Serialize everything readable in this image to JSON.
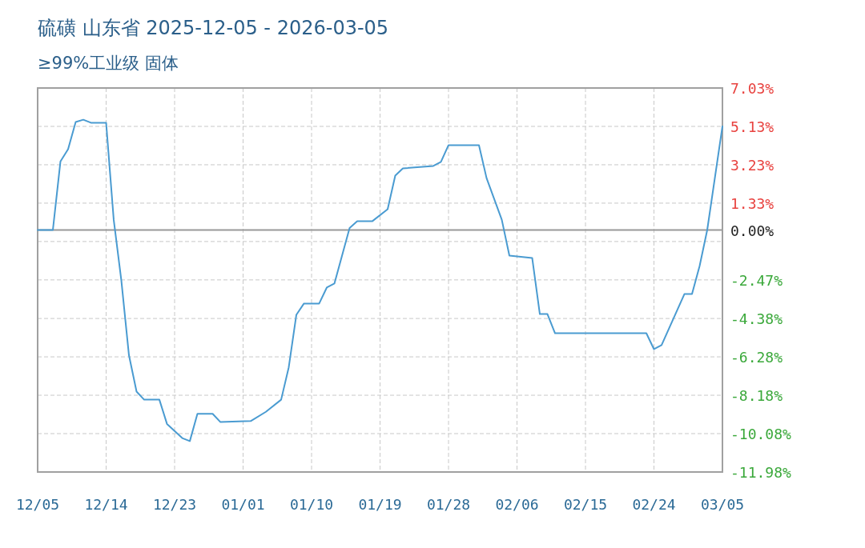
{
  "chart_data": {
    "type": "line",
    "title": "硫磺 山东省 2025-12-05 - 2026-03-05",
    "subtitle": "≥99%工业级 固体",
    "x": [
      "2025-12-05",
      "2025-12-07",
      "2025-12-08",
      "2025-12-09",
      "2025-12-10",
      "2025-12-11",
      "2025-12-12",
      "2025-12-14",
      "2025-12-15",
      "2025-12-16",
      "2025-12-17",
      "2025-12-18",
      "2025-12-19",
      "2025-12-21",
      "2025-12-22",
      "2025-12-24",
      "2025-12-25",
      "2025-12-26",
      "2025-12-28",
      "2025-12-29",
      "2026-01-02",
      "2026-01-04",
      "2026-01-06",
      "2026-01-07",
      "2026-01-08",
      "2026-01-09",
      "2026-01-11",
      "2026-01-12",
      "2026-01-13",
      "2026-01-15",
      "2026-01-16",
      "2026-01-18",
      "2026-01-20",
      "2026-01-21",
      "2026-01-22",
      "2026-01-26",
      "2026-01-27",
      "2026-01-28",
      "2026-02-01",
      "2026-02-02",
      "2026-02-04",
      "2026-02-05",
      "2026-02-08",
      "2026-02-09",
      "2026-02-10",
      "2026-02-11",
      "2026-02-23",
      "2026-02-24",
      "2026-02-25",
      "2026-02-28",
      "2026-03-01",
      "2026-03-02",
      "2026-03-03",
      "2026-03-05"
    ],
    "series": [
      {
        "color": "#4a9bd1",
        "values": [
          0,
          0,
          3.4,
          4.0,
          5.35,
          5.46,
          5.31,
          5.31,
          0.5,
          -2.5,
          -6.2,
          -8.0,
          -8.4,
          -8.4,
          -9.6,
          -10.3,
          -10.45,
          -9.1,
          -9.1,
          -9.5,
          -9.46,
          -9.0,
          -8.4,
          -6.8,
          -4.2,
          -3.64,
          -3.64,
          -2.85,
          -2.65,
          0.1,
          0.44,
          0.44,
          1.03,
          2.69,
          3.05,
          3.17,
          3.37,
          4.2,
          4.2,
          2.57,
          0.51,
          -1.27,
          -1.39,
          -4.16,
          -4.16,
          -5.11,
          -5.11,
          -5.9,
          -5.7,
          -3.17,
          -3.17,
          -1.78,
          0.0,
          5.13
        ]
      }
    ],
    "xlim": [
      "2025-12-05",
      "2026-03-05"
    ],
    "xticks": [
      {
        "value": "2025-12-05",
        "label": "12/05"
      },
      {
        "value": "2025-12-14",
        "label": "12/14"
      },
      {
        "value": "2025-12-23",
        "label": "12/23"
      },
      {
        "value": "2026-01-01",
        "label": "01/01"
      },
      {
        "value": "2026-01-10",
        "label": "01/10"
      },
      {
        "value": "2026-01-19",
        "label": "01/19"
      },
      {
        "value": "2026-01-28",
        "label": "01/28"
      },
      {
        "value": "2026-02-06",
        "label": "02/06"
      },
      {
        "value": "2026-02-15",
        "label": "02/15"
      },
      {
        "value": "2026-02-24",
        "label": "02/24"
      },
      {
        "value": "2026-03-05",
        "label": "03/05"
      }
    ],
    "ylim": [
      -11.98,
      7.03
    ],
    "yticks": [
      {
        "value": 7.03,
        "label": "7.03%"
      },
      {
        "value": 5.13,
        "label": "5.13%"
      },
      {
        "value": 3.23,
        "label": "3.23%"
      },
      {
        "value": 1.33,
        "label": "1.33%"
      },
      {
        "value": 0,
        "label": "0.00%"
      },
      {
        "value": -0.57,
        "label": null
      },
      {
        "value": -2.47,
        "label": "-2.47%"
      },
      {
        "value": -4.38,
        "label": "-4.38%"
      },
      {
        "value": -6.28,
        "label": "-6.28%"
      },
      {
        "value": -8.18,
        "label": "-8.18%"
      },
      {
        "value": -10.08,
        "label": "-10.08%"
      },
      {
        "value": -11.98,
        "label": "-11.98%"
      }
    ],
    "ref_lines": [
      {
        "axis": "y",
        "value": 0,
        "color": "#999999"
      }
    ],
    "grid": true
  }
}
